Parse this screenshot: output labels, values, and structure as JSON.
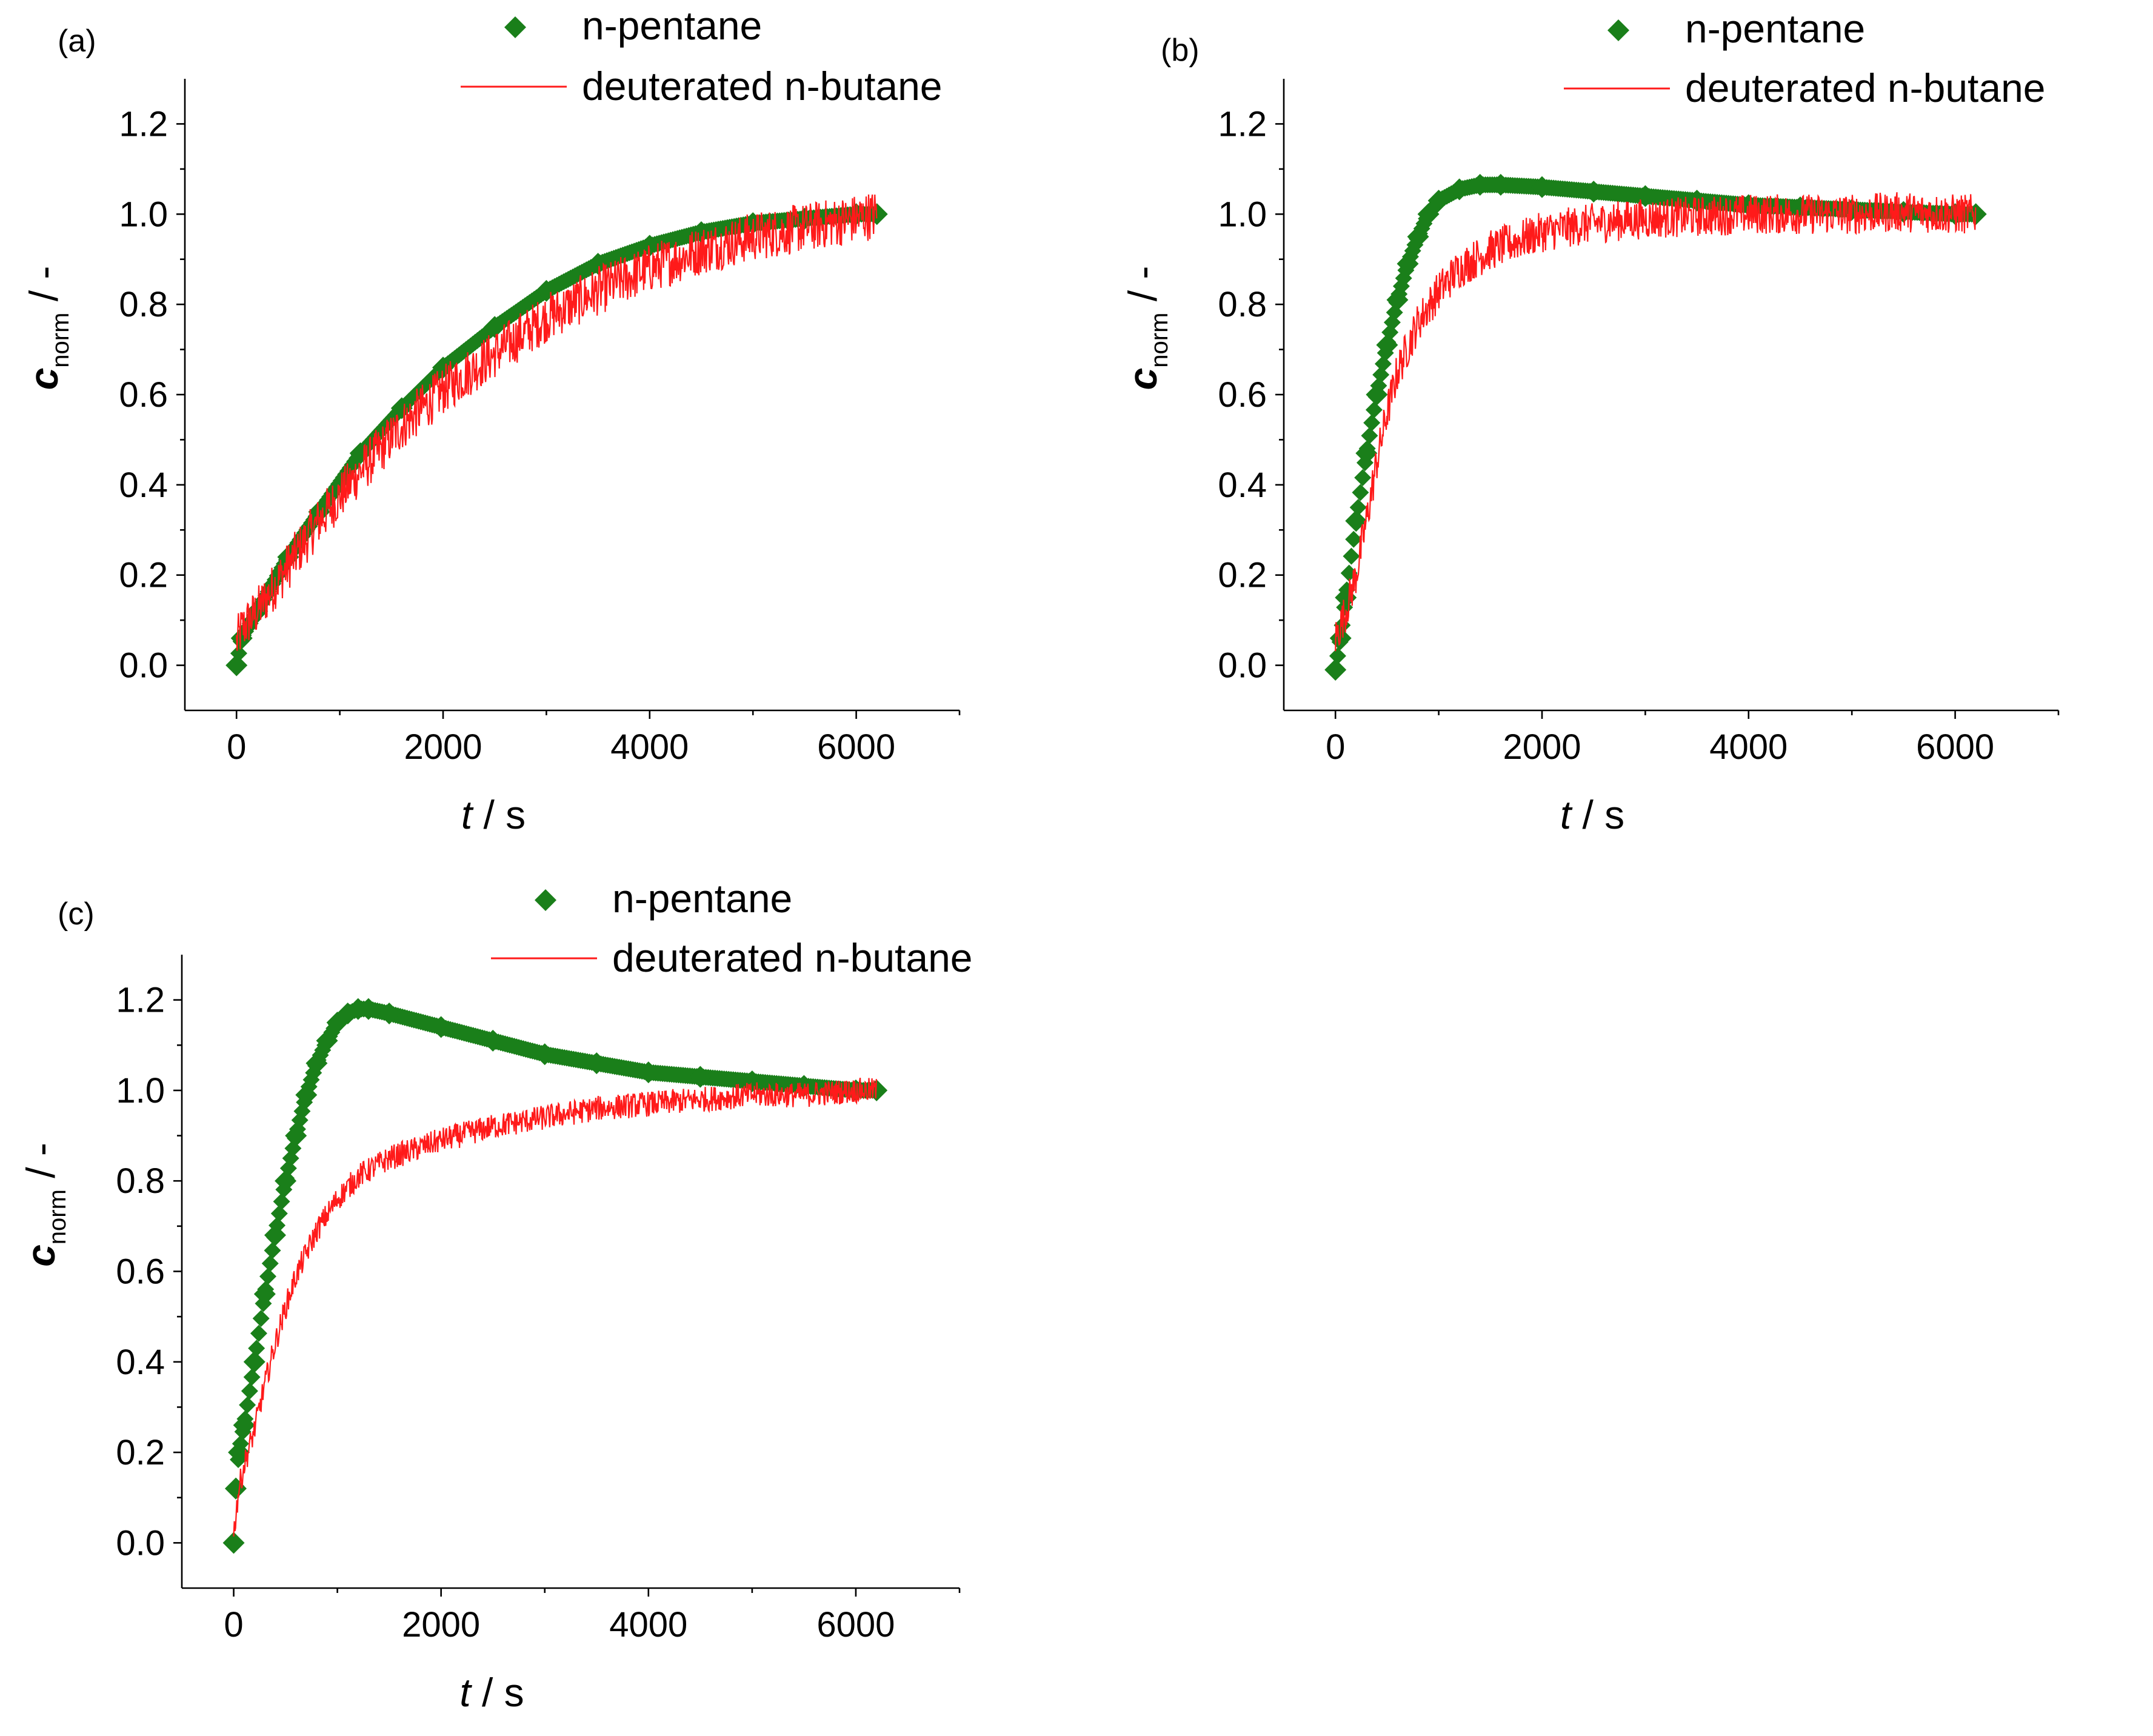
{
  "colors": {
    "pentane": "#1a7f1a",
    "butane": "#ff1a1a",
    "axis": "#000000"
  },
  "chart_data": [
    {
      "type": "line",
      "panel_label": "(a)",
      "xlabel_italic": "t",
      "xlabel_rest": " / s",
      "ylabel_italic": "c",
      "ylabel_sub": "norm",
      "ylabel_rest": " / -",
      "xlim": [
        -500,
        7000
      ],
      "ylim": [
        -0.1,
        1.3
      ],
      "xticks": [
        0,
        2000,
        4000,
        6000
      ],
      "yticks": [
        0.0,
        0.2,
        0.4,
        0.6,
        0.8,
        1.0,
        1.2
      ],
      "xtick_labels": [
        "0",
        "2000",
        "4000",
        "6000"
      ],
      "ytick_labels": [
        "0.0",
        "0.2",
        "0.4",
        "0.6",
        "0.8",
        "1.0",
        "1.2"
      ],
      "legend": [
        "n-pentane",
        "deuterated n-butane"
      ],
      "series": [
        {
          "name": "n-pentane",
          "style": "diamond",
          "x": [
            0,
            50,
            200,
            500,
            800,
            1200,
            1600,
            2000,
            2500,
            3000,
            3500,
            4000,
            4500,
            5000,
            5500,
            6000,
            6200
          ],
          "y": [
            0.0,
            0.06,
            0.12,
            0.24,
            0.34,
            0.47,
            0.57,
            0.66,
            0.75,
            0.83,
            0.89,
            0.93,
            0.96,
            0.98,
            0.99,
            1.0,
            1.0
          ]
        },
        {
          "name": "deuterated n-butane",
          "style": "line",
          "x": [
            0,
            50,
            200,
            500,
            800,
            1200,
            1600,
            2000,
            2500,
            3000,
            3500,
            4000,
            4500,
            5000,
            5500,
            6000,
            6200
          ],
          "y": [
            0.05,
            0.08,
            0.12,
            0.22,
            0.32,
            0.43,
            0.53,
            0.61,
            0.69,
            0.77,
            0.83,
            0.88,
            0.92,
            0.95,
            0.97,
            0.99,
            1.0
          ]
        }
      ]
    },
    {
      "type": "line",
      "panel_label": "(b)",
      "xlabel_italic": "t",
      "xlabel_rest": " / s",
      "ylabel_italic": "c",
      "ylabel_sub": "norm",
      "ylabel_rest": " / -",
      "xlim": [
        -500,
        7000
      ],
      "ylim": [
        -0.1,
        1.3
      ],
      "xticks": [
        0,
        2000,
        4000,
        6000
      ],
      "yticks": [
        0.0,
        0.2,
        0.4,
        0.6,
        0.8,
        1.0,
        1.2
      ],
      "xtick_labels": [
        "0",
        "2000",
        "4000",
        "6000"
      ],
      "ytick_labels": [
        "0.0",
        "0.2",
        "0.4",
        "0.6",
        "0.8",
        "1.0",
        "1.2"
      ],
      "legend": [
        "n-pentane",
        "deuterated n-butane"
      ],
      "series": [
        {
          "name": "n-pentane",
          "style": "diamond",
          "x": [
            0,
            50,
            100,
            200,
            300,
            400,
            500,
            600,
            700,
            800,
            900,
            1000,
            1200,
            1400,
            1600,
            2000,
            2500,
            3000,
            3500,
            4000,
            4500,
            5000,
            5500,
            6000,
            6200
          ],
          "y": [
            -0.01,
            0.06,
            0.15,
            0.32,
            0.47,
            0.6,
            0.71,
            0.81,
            0.89,
            0.95,
            1.0,
            1.03,
            1.055,
            1.065,
            1.065,
            1.06,
            1.05,
            1.04,
            1.03,
            1.02,
            1.015,
            1.01,
            1.005,
            1.0,
            1.0
          ]
        },
        {
          "name": "deuterated n-butane",
          "style": "line",
          "x": [
            0,
            100,
            200,
            300,
            400,
            500,
            600,
            800,
            1000,
            1200,
            1500,
            2000,
            2500,
            3000,
            3500,
            4000,
            4500,
            5000,
            5500,
            6000,
            6200
          ],
          "y": [
            0.06,
            0.12,
            0.2,
            0.32,
            0.45,
            0.56,
            0.65,
            0.76,
            0.83,
            0.88,
            0.92,
            0.96,
            0.98,
            0.99,
            0.995,
            1.0,
            1.0,
            1.0,
            1.005,
            1.0,
            1.0
          ]
        }
      ]
    },
    {
      "type": "line",
      "panel_label": "(c)",
      "xlabel_italic": "t",
      "xlabel_rest": " / s",
      "ylabel_italic": "c",
      "ylabel_sub": "norm",
      "ylabel_rest": " / -",
      "xlim": [
        -500,
        7000
      ],
      "ylim": [
        -0.1,
        1.3
      ],
      "xticks": [
        0,
        2000,
        4000,
        6000
      ],
      "yticks": [
        0.0,
        0.2,
        0.4,
        0.6,
        0.8,
        1.0,
        1.2
      ],
      "xtick_labels": [
        "0",
        "2000",
        "4000",
        "6000"
      ],
      "ytick_labels": [
        "0.0",
        "0.2",
        "0.4",
        "0.6",
        "0.8",
        "1.0",
        "1.2"
      ],
      "legend": [
        "n-pentane",
        "deuterated n-butane"
      ],
      "series": [
        {
          "name": "n-pentane",
          "style": "diamond",
          "x": [
            0,
            20,
            50,
            100,
            200,
            300,
            400,
            500,
            600,
            700,
            800,
            900,
            1000,
            1100,
            1200,
            1300,
            1500,
            2000,
            2500,
            3000,
            3500,
            4000,
            4500,
            5000,
            5500,
            6000,
            6200
          ],
          "y": [
            0.0,
            0.12,
            0.2,
            0.26,
            0.4,
            0.55,
            0.68,
            0.8,
            0.9,
            0.99,
            1.06,
            1.11,
            1.15,
            1.17,
            1.18,
            1.18,
            1.17,
            1.14,
            1.11,
            1.08,
            1.06,
            1.04,
            1.03,
            1.02,
            1.01,
            1.0,
            1.0
          ]
        },
        {
          "name": "deuterated n-butane",
          "style": "line",
          "x": [
            0,
            50,
            100,
            200,
            300,
            400,
            500,
            600,
            800,
            1000,
            1200,
            1500,
            2000,
            2500,
            3000,
            3500,
            4000,
            4500,
            5000,
            5500,
            6000,
            6200
          ],
          "y": [
            0.02,
            0.12,
            0.17,
            0.25,
            0.35,
            0.44,
            0.52,
            0.59,
            0.69,
            0.76,
            0.81,
            0.85,
            0.89,
            0.92,
            0.94,
            0.96,
            0.97,
            0.98,
            0.99,
            0.99,
            1.0,
            1.0
          ]
        }
      ]
    }
  ]
}
